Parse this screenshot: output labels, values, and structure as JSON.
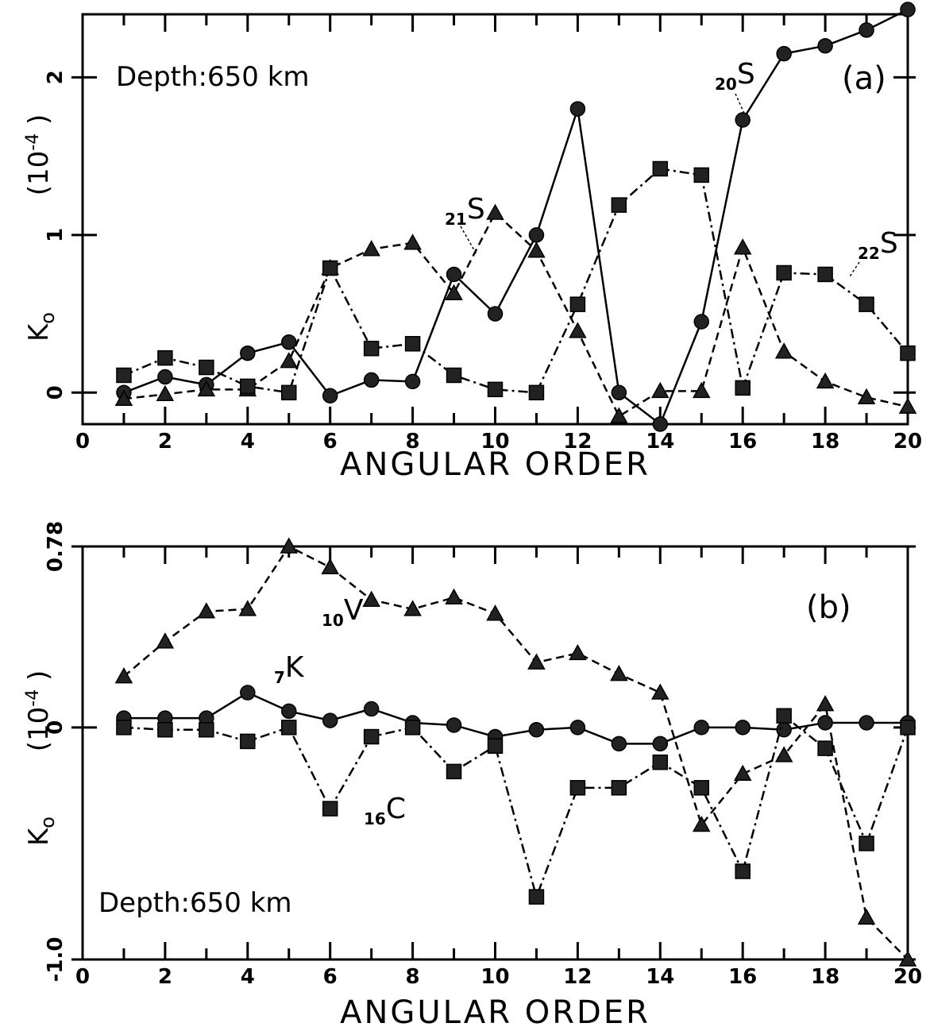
{
  "chart_data": [
    {
      "type": "line",
      "panel_label": "(a)",
      "annotation": "Depth:650 km",
      "xlabel": "ANGULAR ORDER",
      "ylabel": "K",
      "ylabel_sub": "o",
      "yunit": "(10",
      "yunit_exp": "-4",
      "yunit_close": ")",
      "xlim": [
        0,
        20
      ],
      "ylim": [
        -0.2,
        2.4
      ],
      "x_ticks": [
        "0",
        "2",
        "4",
        "6",
        "8",
        "10",
        "12",
        "14",
        "16",
        "18",
        "20"
      ],
      "y_ticks": [
        {
          "value": 0,
          "label": "0"
        },
        {
          "value": 1,
          "label": "1"
        },
        {
          "value": 2,
          "label": "2"
        }
      ],
      "series": [
        {
          "name": "S",
          "prefix": "20",
          "marker": "circle",
          "line": "solid",
          "x": [
            1,
            2,
            3,
            4,
            5,
            6,
            7,
            8,
            9,
            10,
            11,
            12,
            13,
            14,
            15,
            16,
            17,
            18,
            19,
            20
          ],
          "y": [
            0.0,
            0.1,
            0.05,
            0.25,
            0.32,
            -0.02,
            0.08,
            0.07,
            0.75,
            0.5,
            1.0,
            1.8,
            0.0,
            -0.2,
            0.45,
            1.73,
            2.15,
            2.2,
            2.3,
            2.43
          ]
        },
        {
          "name": "S",
          "prefix": "21",
          "marker": "triangle",
          "line": "dash",
          "x": [
            1,
            2,
            3,
            4,
            5,
            6,
            7,
            8,
            9,
            10,
            11,
            12,
            13,
            14,
            15,
            16,
            17,
            18,
            19,
            20
          ],
          "y": [
            -0.04,
            -0.01,
            0.02,
            0.02,
            0.2,
            0.79,
            0.91,
            0.95,
            0.63,
            1.14,
            0.9,
            0.39,
            -0.15,
            0.01,
            0.01,
            0.92,
            0.26,
            0.07,
            -0.03,
            -0.09
          ]
        },
        {
          "name": "S",
          "prefix": "22",
          "marker": "square",
          "line": "dashdot",
          "x": [
            1,
            2,
            3,
            4,
            5,
            6,
            7,
            8,
            9,
            10,
            11,
            12,
            13,
            14,
            15,
            16,
            17,
            18,
            19,
            20
          ],
          "y": [
            0.11,
            0.22,
            0.16,
            0.04,
            0.0,
            0.79,
            0.28,
            0.31,
            0.11,
            0.02,
            0.0,
            0.56,
            1.19,
            1.42,
            1.38,
            0.03,
            0.76,
            0.75,
            0.56,
            0.25
          ]
        }
      ]
    },
    {
      "type": "line",
      "panel_label": "(b)",
      "annotation": "Depth:650 km",
      "xlabel": "ANGULAR ORDER",
      "ylabel": "K",
      "ylabel_sub": "o",
      "yunit": "(10",
      "yunit_exp": "-4",
      "yunit_close": ")",
      "xlim": [
        0,
        20
      ],
      "ylim": [
        -1.0,
        0.78
      ],
      "x_ticks": [
        "0",
        "2",
        "4",
        "6",
        "8",
        "10",
        "12",
        "14",
        "16",
        "18",
        "20"
      ],
      "y_ticks": [
        {
          "value": 0.78,
          "label": "0.78"
        },
        {
          "value": 0,
          "label": "0"
        },
        {
          "value": -1.0,
          "label": "-1.0"
        }
      ],
      "series": [
        {
          "name": "V",
          "prefix": "10",
          "marker": "triangle",
          "line": "dash",
          "x": [
            1,
            2,
            3,
            4,
            5,
            6,
            7,
            8,
            9,
            10,
            11,
            12,
            13,
            14,
            15,
            16,
            17,
            18,
            19,
            20
          ],
          "y": [
            0.22,
            0.37,
            0.5,
            0.51,
            0.78,
            0.69,
            0.55,
            0.51,
            0.56,
            0.49,
            0.28,
            0.32,
            0.23,
            0.15,
            -0.42,
            -0.2,
            -0.12,
            0.1,
            -0.82,
            -1.0
          ]
        },
        {
          "name": "K",
          "prefix": "7",
          "marker": "circle",
          "line": "solid",
          "x": [
            1,
            2,
            3,
            4,
            5,
            6,
            7,
            8,
            9,
            10,
            11,
            12,
            13,
            14,
            15,
            16,
            17,
            18,
            19,
            20
          ],
          "y": [
            0.04,
            0.04,
            0.04,
            0.15,
            0.07,
            0.03,
            0.08,
            0.02,
            0.01,
            -0.04,
            -0.01,
            0.0,
            -0.07,
            -0.07,
            0.0,
            0.0,
            -0.01,
            0.02,
            0.02,
            0.02
          ]
        },
        {
          "name": "C",
          "prefix": "16",
          "marker": "square",
          "line": "dashdot",
          "x": [
            1,
            2,
            3,
            4,
            5,
            6,
            7,
            8,
            9,
            10,
            11,
            12,
            13,
            14,
            15,
            16,
            17,
            18,
            19,
            20
          ],
          "y": [
            0.0,
            -0.01,
            -0.01,
            -0.06,
            0.0,
            -0.35,
            -0.04,
            0.0,
            -0.19,
            -0.08,
            -0.73,
            -0.26,
            -0.26,
            -0.15,
            -0.26,
            -0.62,
            0.05,
            -0.09,
            -0.5,
            0.0
          ]
        }
      ]
    }
  ]
}
